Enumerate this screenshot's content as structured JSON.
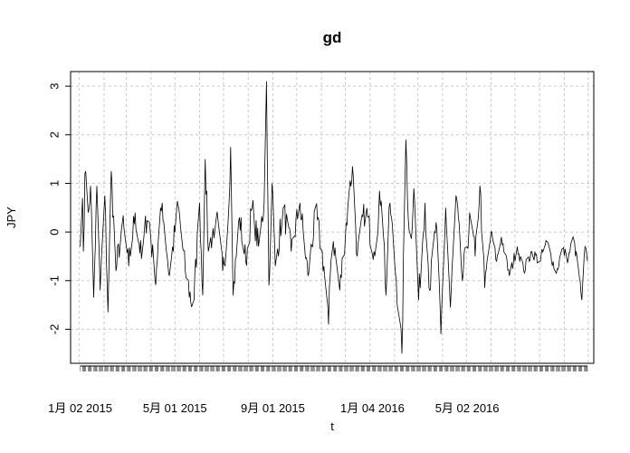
{
  "chart_data": {
    "type": "line",
    "title": "gd",
    "xlabel": "t",
    "ylabel": "JPY",
    "ylim": [
      -2.7,
      3.3
    ],
    "yticks": [
      -2,
      -1,
      0,
      1,
      2,
      3
    ],
    "xlim": [
      "2014-12-21",
      "2016-10-08"
    ],
    "x_tick_labels": [
      {
        "date": "2015-01-02",
        "label": "1月 02 2015"
      },
      {
        "date": "2015-05-01",
        "label": "5月 01 2015"
      },
      {
        "date": "2015-09-01",
        "label": "9月 01 2015"
      },
      {
        "date": "2016-01-04",
        "label": "1月 04 2016"
      },
      {
        "date": "2016-05-02",
        "label": "5月 02 2016"
      }
    ],
    "grid": true,
    "x_start": "2015-01-02",
    "x_end": "2016-09-30",
    "anchors": [
      [
        "2015-01-02",
        -0.3
      ],
      [
        "2015-01-05",
        0.7
      ],
      [
        "2015-01-06",
        -0.4
      ],
      [
        "2015-01-08",
        1.2
      ],
      [
        "2015-01-12",
        0.4
      ],
      [
        "2015-01-15",
        0.95
      ],
      [
        "2015-01-19",
        -1.35
      ],
      [
        "2015-01-23",
        0.95
      ],
      [
        "2015-01-27",
        -1.2
      ],
      [
        "2015-02-02",
        0.75
      ],
      [
        "2015-02-06",
        -1.65
      ],
      [
        "2015-02-10",
        1.25
      ],
      [
        "2015-02-16",
        -0.8
      ],
      [
        "2015-02-24",
        0.2
      ],
      [
        "2015-03-04",
        -0.7
      ],
      [
        "2015-03-12",
        0.4
      ],
      [
        "2015-03-20",
        -0.55
      ],
      [
        "2015-03-28",
        0.5
      ],
      [
        "2015-04-06",
        -1.0
      ],
      [
        "2015-04-15",
        0.6
      ],
      [
        "2015-04-24",
        -0.9
      ],
      [
        "2015-05-05",
        0.55
      ],
      [
        "2015-05-14",
        -0.8
      ],
      [
        "2015-05-24",
        -1.6
      ],
      [
        "2015-06-01",
        0.6
      ],
      [
        "2015-06-05",
        -1.3
      ],
      [
        "2015-06-08",
        1.5
      ],
      [
        "2015-06-12",
        -0.4
      ],
      [
        "2015-06-22",
        0.3
      ],
      [
        "2015-06-30",
        -0.8
      ],
      [
        "2015-07-06",
        0.0
      ],
      [
        "2015-07-10",
        1.75
      ],
      [
        "2015-07-13",
        -1.3
      ],
      [
        "2015-07-21",
        0.3
      ],
      [
        "2015-07-29",
        -0.6
      ],
      [
        "2015-08-06",
        0.5
      ],
      [
        "2015-08-14",
        -0.3
      ],
      [
        "2015-08-21",
        0.6
      ],
      [
        "2015-08-24",
        3.1
      ],
      [
        "2015-08-27",
        -1.1
      ],
      [
        "2015-08-31",
        1.0
      ],
      [
        "2015-09-04",
        -0.7
      ],
      [
        "2015-09-14",
        0.5
      ],
      [
        "2015-09-24",
        -0.4
      ],
      [
        "2015-10-05",
        0.6
      ],
      [
        "2015-10-15",
        -0.9
      ],
      [
        "2015-10-25",
        0.4
      ],
      [
        "2015-11-04",
        -0.7
      ],
      [
        "2015-11-10",
        -1.9
      ],
      [
        "2015-11-14",
        0.1
      ],
      [
        "2015-11-24",
        -1.2
      ],
      [
        "2015-12-04",
        0.5
      ],
      [
        "2015-12-10",
        1.35
      ],
      [
        "2015-12-16",
        -0.5
      ],
      [
        "2015-12-26",
        0.5
      ],
      [
        "2016-01-06",
        -0.4
      ],
      [
        "2016-01-16",
        1.0
      ],
      [
        "2016-01-21",
        -1.3
      ],
      [
        "2016-01-26",
        0.6
      ],
      [
        "2016-02-03",
        -1.0
      ],
      [
        "2016-02-10",
        -2.5
      ],
      [
        "2016-02-15",
        1.9
      ],
      [
        "2016-02-20",
        -0.5
      ],
      [
        "2016-02-25",
        0.9
      ],
      [
        "2016-03-02",
        -1.4
      ],
      [
        "2016-03-10",
        0.6
      ],
      [
        "2016-03-16",
        -1.2
      ],
      [
        "2016-03-24",
        0.2
      ],
      [
        "2016-03-30",
        -2.1
      ],
      [
        "2016-04-05",
        0.5
      ],
      [
        "2016-04-11",
        -1.55
      ],
      [
        "2016-04-18",
        0.75
      ],
      [
        "2016-04-26",
        -1.0
      ],
      [
        "2016-05-06",
        0.3
      ],
      [
        "2016-05-12",
        -0.5
      ],
      [
        "2016-05-18",
        0.95
      ],
      [
        "2016-05-24",
        -1.15
      ],
      [
        "2016-06-01",
        0.0
      ],
      [
        "2016-06-08",
        -0.6
      ],
      [
        "2016-06-14",
        -0.1
      ],
      [
        "2016-06-24",
        -0.9
      ],
      [
        "2016-07-04",
        -0.3
      ],
      [
        "2016-07-12",
        -0.8
      ],
      [
        "2016-07-22",
        -0.4
      ],
      [
        "2016-08-01",
        -0.6
      ],
      [
        "2016-08-10",
        -0.2
      ],
      [
        "2016-08-22",
        -0.85
      ],
      [
        "2016-08-29",
        -0.35
      ],
      [
        "2016-09-06",
        -0.55
      ],
      [
        "2016-09-12",
        -0.1
      ],
      [
        "2016-09-19",
        -0.8
      ],
      [
        "2016-09-23",
        -1.4
      ],
      [
        "2016-09-27",
        -0.3
      ],
      [
        "2016-09-30",
        -0.6
      ]
    ]
  }
}
